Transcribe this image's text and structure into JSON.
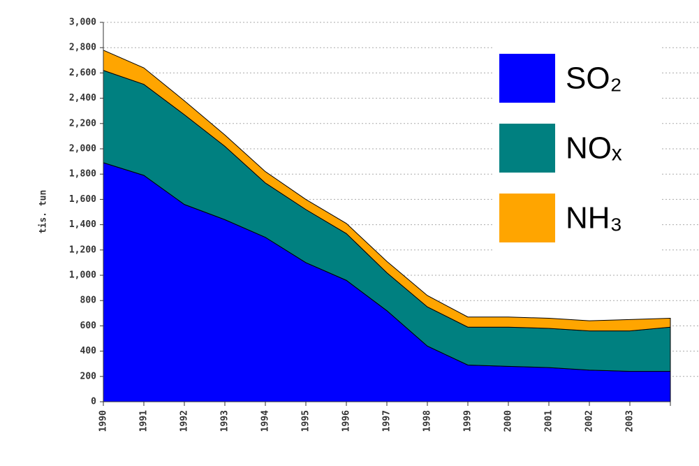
{
  "chart_data": {
    "type": "stacked_area",
    "y_label": "tis. tun",
    "categories": [
      "1990",
      "1991",
      "1992",
      "1993",
      "1994",
      "1995",
      "1996",
      "1997",
      "1998",
      "1999",
      "2000",
      "2001",
      "2002",
      "2003",
      null
    ],
    "series": [
      {
        "name": "SO₂",
        "color": "#0000ff",
        "values": [
          1890,
          1790,
          1560,
          1440,
          1300,
          1100,
          960,
          720,
          440,
          290,
          280,
          270,
          250,
          240,
          240
        ]
      },
      {
        "name": "NOₓ",
        "color": "#008080",
        "values": [
          730,
          720,
          710,
          580,
          430,
          420,
          370,
          300,
          310,
          300,
          310,
          310,
          310,
          320,
          350
        ]
      },
      {
        "name": "NH₃",
        "color": "#ffa500",
        "values": [
          160,
          130,
          110,
          90,
          90,
          80,
          80,
          90,
          90,
          80,
          80,
          80,
          80,
          90,
          70
        ]
      }
    ],
    "ylim": [
      0,
      3000
    ],
    "yticks": [
      0,
      200,
      400,
      600,
      800,
      {
        "value": 1000,
        "label": "1,000"
      },
      {
        "value": 1200,
        "label": "1,200"
      },
      {
        "value": 1400,
        "label": "1,400"
      },
      {
        "value": 1600,
        "label": "1,600"
      },
      {
        "value": 1800,
        "label": "1,800"
      },
      {
        "value": 2000,
        "label": "2,000"
      },
      {
        "value": 2200,
        "label": "2,200"
      },
      {
        "value": 2400,
        "label": "2,400"
      },
      {
        "value": 2600,
        "label": "2,600"
      },
      {
        "value": 2800,
        "label": "2,800"
      },
      {
        "value": 3000,
        "label": "3,000"
      }
    ],
    "grid": true,
    "legend": "upper right"
  }
}
